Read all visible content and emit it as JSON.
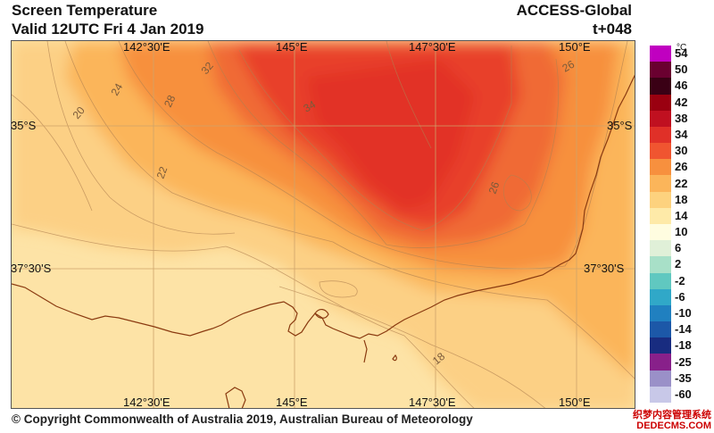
{
  "header": {
    "title": "Screen Temperature",
    "valid": "Valid 12UTC Fri 4 Jan 2019",
    "model": "ACCESS-Global",
    "lead": "t+048"
  },
  "map": {
    "lon_labels": [
      "142°30'E",
      "145°E",
      "147°30'E",
      "150°E"
    ],
    "lat_labels": [
      "35°S",
      "37°30'S"
    ],
    "contour_labels": [
      "32",
      "24",
      "28",
      "20",
      "22",
      "34",
      "26",
      "26",
      "18"
    ]
  },
  "legend": {
    "unit": "°C",
    "levels": [
      "54",
      "50",
      "46",
      "42",
      "38",
      "34",
      "30",
      "26",
      "22",
      "18",
      "14",
      "10",
      "6",
      "2",
      "-2",
      "-6",
      "-10",
      "-14",
      "-18",
      "-25",
      "-35",
      "-60"
    ],
    "colors": [
      "#c000c0",
      "#6a0030",
      "#3a0015",
      "#9a0010",
      "#c01020",
      "#e03028",
      "#f05530",
      "#f7903e",
      "#fbb55a",
      "#fdd27e",
      "#feeaa8",
      "#fffde0",
      "#e0f0d8",
      "#a8e0c8",
      "#60c8c0",
      "#30a8c8",
      "#2080c0",
      "#1c58a8",
      "#182c80",
      "#88208a",
      "#9a90c8",
      "#c8c8e8"
    ]
  },
  "footer": "© Copyright Commonwealth of Australia 2019, Australian Bureau of Meteorology",
  "watermark": [
    "织梦内容管理系统",
    "DEDECMS.COM"
  ]
}
